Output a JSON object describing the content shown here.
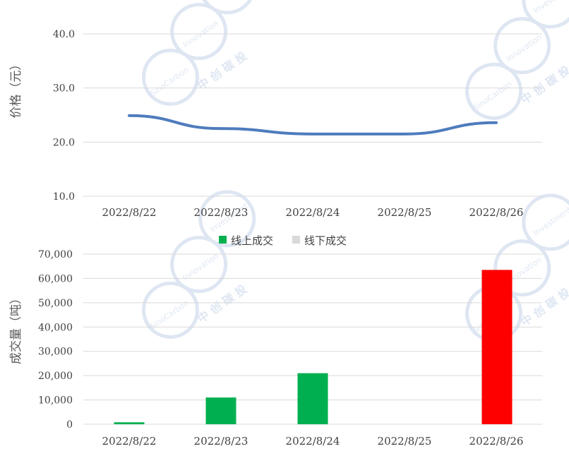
{
  "chart_data": [
    {
      "type": "line",
      "categories": [
        "2022/8/22",
        "2022/8/23",
        "2022/8/24",
        "2022/8/25",
        "2022/8/26"
      ],
      "ylabel": "价格（元）",
      "ylim": [
        10,
        40
      ],
      "yticks": [
        "40.0",
        "30.0",
        "20.0",
        "10.0"
      ],
      "grid": true,
      "series": [
        {
          "values": [
            24.9,
            22.5,
            21.5,
            21.5,
            23.6
          ],
          "color": "#4e7cbd"
        }
      ]
    },
    {
      "type": "bar",
      "categories": [
        "2022/8/22",
        "2022/8/23",
        "2022/8/24",
        "2022/8/25",
        "2022/8/26"
      ],
      "ylabel": "成交量（吨）",
      "ylim": [
        0,
        70000
      ],
      "yticks": [
        "70,000",
        "60,000",
        "50,000",
        "40,000",
        "30,000",
        "20,000",
        "10,000",
        "0"
      ],
      "grid": true,
      "legend_position": "top-center",
      "series": [
        {
          "name": "线上成交",
          "color": "#00b050",
          "values": [
            800,
            11000,
            21000,
            0,
            0
          ]
        },
        {
          "name": "线下成交",
          "color": "#d9d9d9",
          "values": [
            0,
            0,
            0,
            0,
            0
          ]
        }
      ],
      "highlight": {
        "category": "2022/8/26",
        "value": 63500,
        "color": "#ff0000"
      }
    }
  ],
  "watermark": {
    "brand": "SinoCarbon",
    "word": "Innovation",
    "word2": "Investment",
    "cn": "中 创 碳 投",
    "color": "#4e7cbd"
  }
}
